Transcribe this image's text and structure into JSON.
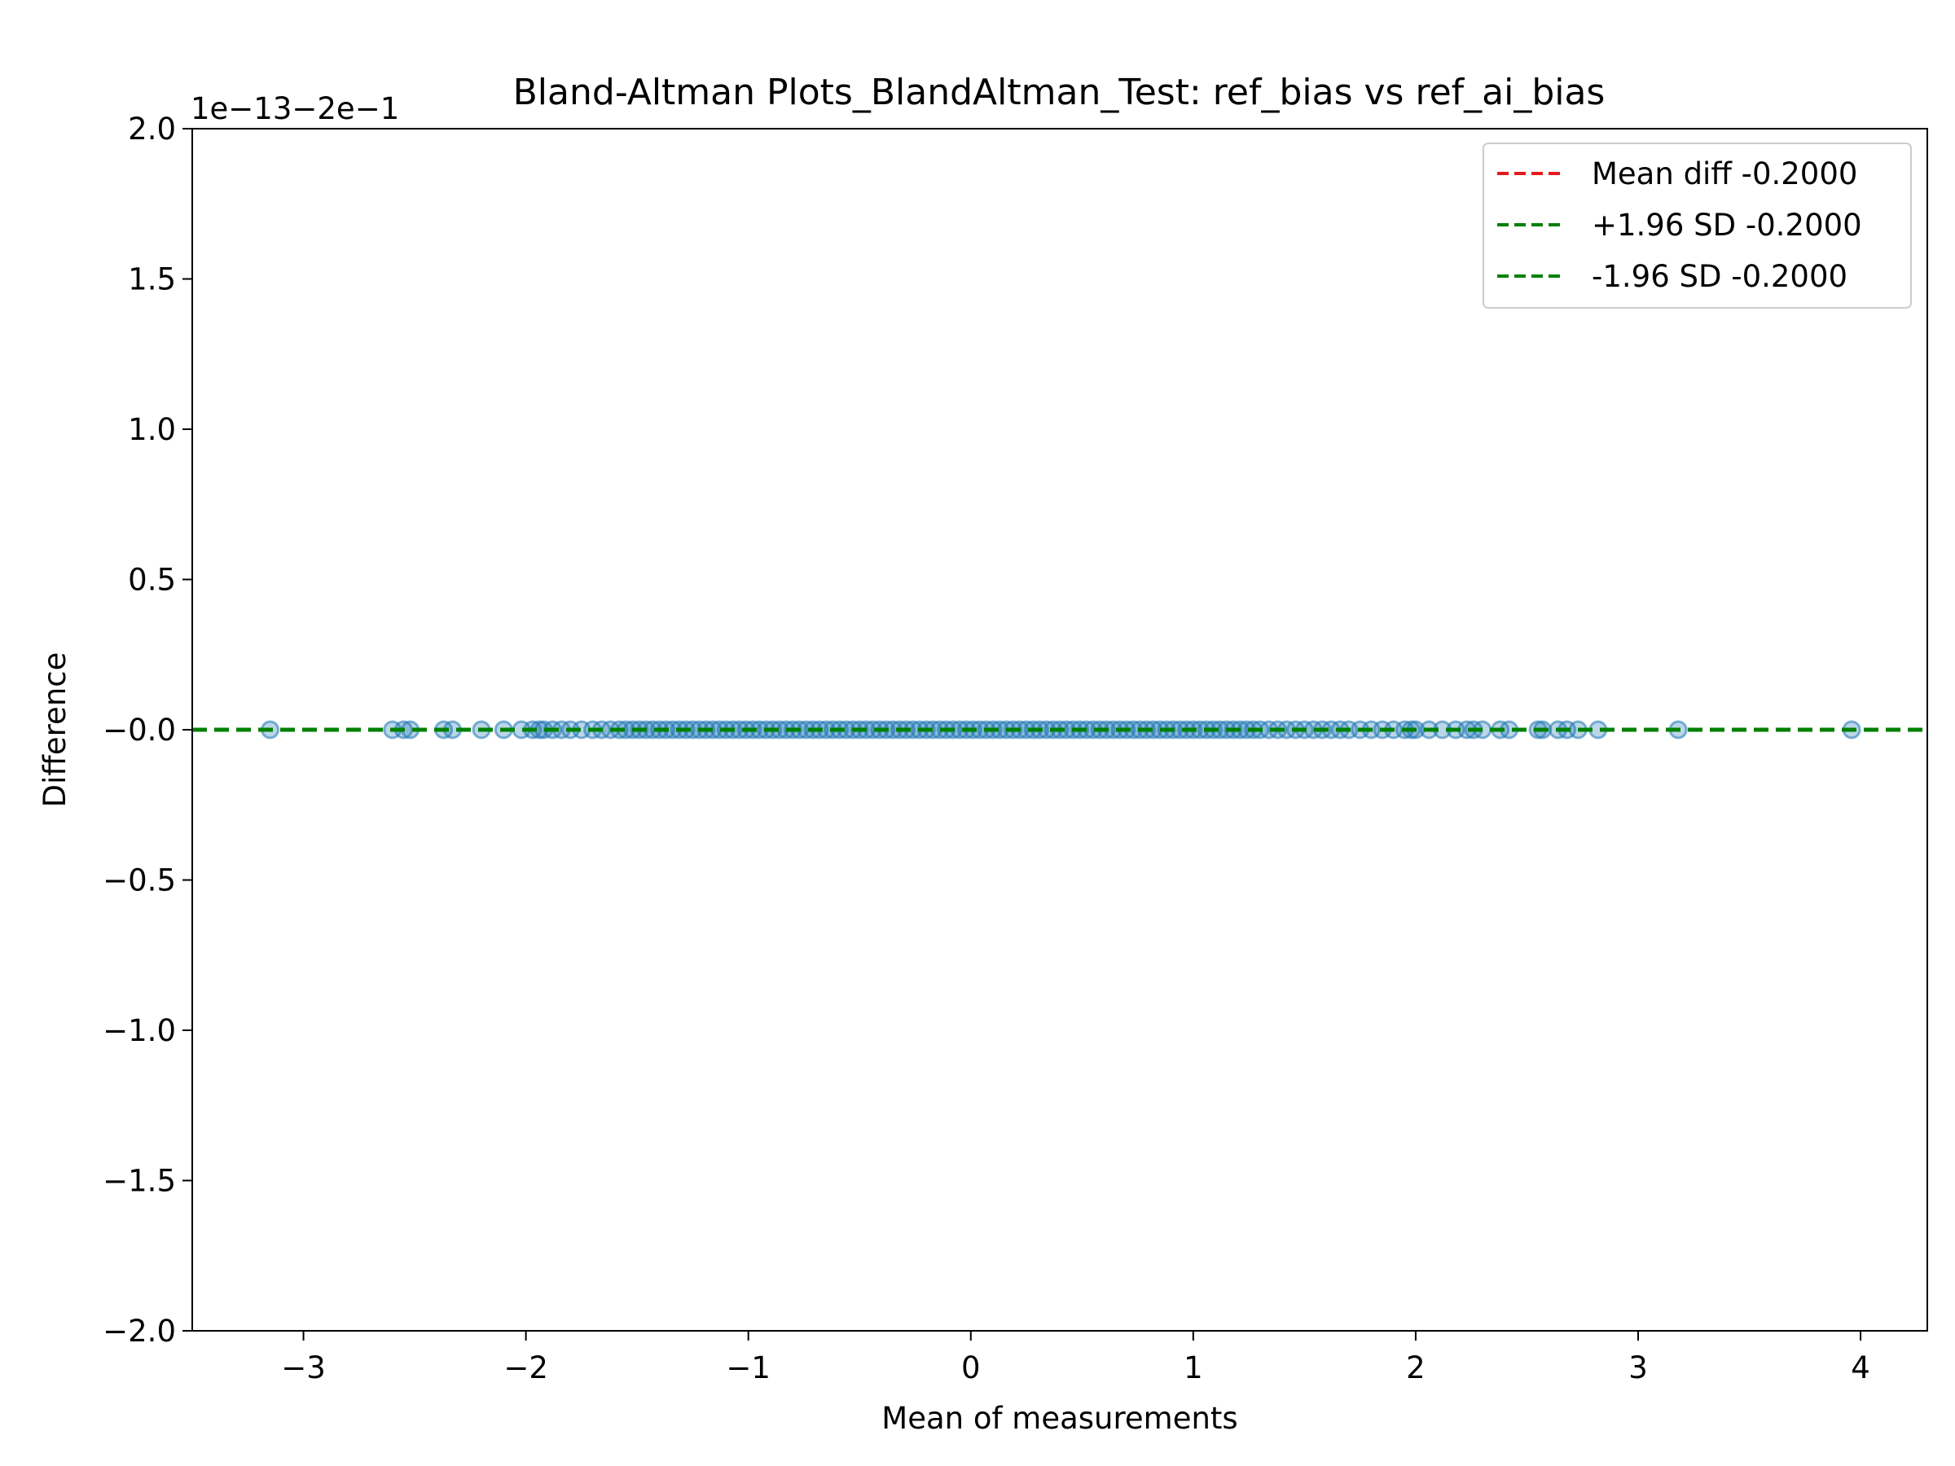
{
  "chart_data": {
    "type": "scatter",
    "title": "Bland-Altman Plots_BlandAltman_Test: ref_bias vs ref_ai_bias",
    "xlabel": "Mean of measurements",
    "ylabel": "Difference",
    "offset_text": "1e−13−2e−1",
    "xlim": [
      -3.5,
      4.3
    ],
    "ylim": [
      -2.0,
      2.0
    ],
    "x_ticks": [
      -3,
      -2,
      -1,
      0,
      1,
      2,
      3,
      4
    ],
    "x_tick_labels": [
      "−3",
      "−2",
      "−1",
      "0",
      "1",
      "2",
      "3",
      "4"
    ],
    "y_ticks": [
      -2.0,
      -1.5,
      -1.0,
      -0.5,
      0.0,
      0.5,
      1.0,
      1.5,
      2.0
    ],
    "y_tick_labels": [
      "−2.0",
      "−1.5",
      "−1.0",
      "−0.5",
      "−0.0",
      "0.5",
      "1.0",
      "1.5",
      "2.0"
    ],
    "grid": false,
    "legend_position": "top-right",
    "reference_lines": [
      {
        "label": "Mean diff -0.2000",
        "y": 0.0,
        "color": "#e41a1c",
        "style": "dashed"
      },
      {
        "label": "+1.96 SD -0.2000",
        "y": 0.0,
        "color": "#008000",
        "style": "dashed"
      },
      {
        "label": "-1.96 SD -0.2000",
        "y": 0.0,
        "color": "#008000",
        "style": "dashed"
      }
    ],
    "series": [
      {
        "color": "#1f77b4",
        "y": 0.0,
        "x": [
          -3.15,
          -2.6,
          -2.55,
          -2.52,
          -2.37,
          -2.33,
          -2.2,
          -2.1,
          -2.02,
          -1.97,
          -1.94,
          -1.92,
          -1.88,
          -1.84,
          -1.8,
          -1.75,
          -1.7,
          -1.66,
          -1.62,
          -1.58,
          -1.55,
          -1.52,
          -1.49,
          -1.46,
          -1.43,
          -1.4,
          -1.37,
          -1.34,
          -1.31,
          -1.28,
          -1.25,
          -1.22,
          -1.19,
          -1.16,
          -1.13,
          -1.1,
          -1.07,
          -1.04,
          -1.01,
          -0.98,
          -0.95,
          -0.92,
          -0.89,
          -0.86,
          -0.83,
          -0.8,
          -0.77,
          -0.74,
          -0.71,
          -0.68,
          -0.65,
          -0.62,
          -0.59,
          -0.56,
          -0.53,
          -0.5,
          -0.47,
          -0.44,
          -0.41,
          -0.38,
          -0.35,
          -0.32,
          -0.29,
          -0.26,
          -0.23,
          -0.2,
          -0.17,
          -0.14,
          -0.11,
          -0.08,
          -0.05,
          -0.02,
          0.01,
          0.04,
          0.07,
          0.1,
          0.13,
          0.16,
          0.19,
          0.22,
          0.25,
          0.28,
          0.31,
          0.34,
          0.37,
          0.4,
          0.43,
          0.46,
          0.49,
          0.52,
          0.55,
          0.58,
          0.61,
          0.64,
          0.67,
          0.7,
          0.73,
          0.76,
          0.79,
          0.82,
          0.85,
          0.88,
          0.91,
          0.94,
          0.97,
          1.0,
          1.03,
          1.06,
          1.09,
          1.12,
          1.15,
          1.18,
          1.21,
          1.24,
          1.27,
          1.3,
          1.34,
          1.38,
          1.42,
          1.46,
          1.5,
          1.54,
          1.58,
          1.62,
          1.66,
          1.7,
          1.75,
          1.8,
          1.85,
          1.9,
          1.95,
          1.98,
          2.0,
          2.06,
          2.12,
          2.18,
          2.23,
          2.26,
          2.3,
          2.38,
          2.42,
          2.55,
          2.57,
          2.64,
          2.68,
          2.73,
          2.82,
          3.18,
          3.96
        ]
      }
    ]
  }
}
